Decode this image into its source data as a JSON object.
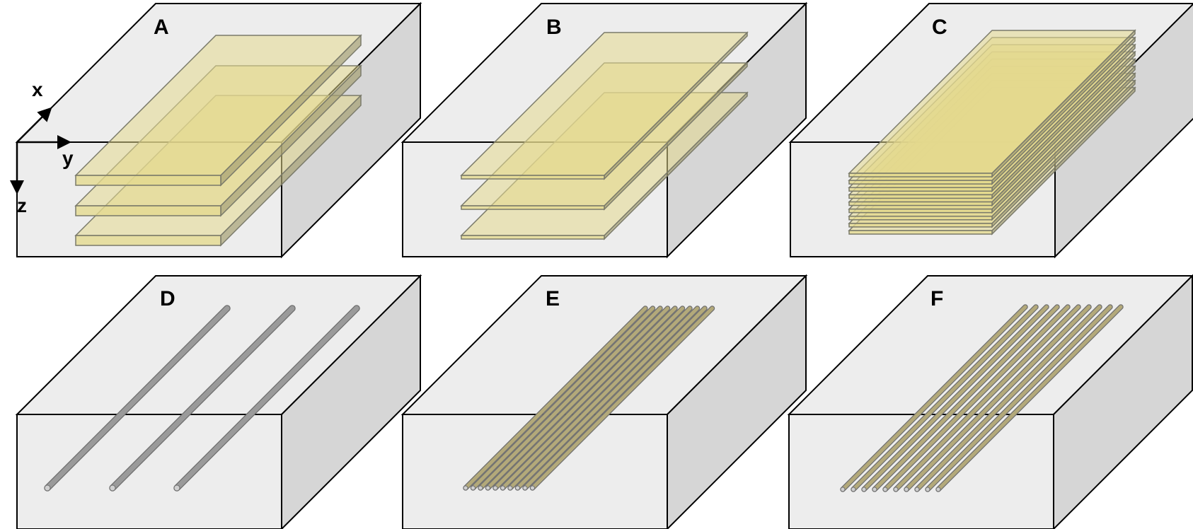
{
  "colors": {
    "box_top": "#ededed",
    "box_front": "#ededed",
    "box_side": "#d6d6d6",
    "box_stroke": "#000000",
    "sheet_fill": "#e3d98e",
    "sheet_stroke": "#7a7a6a",
    "rod_fill": "#9a9a9a",
    "rod_dark": "#6e6e6e",
    "fiber_fill": "#b3a97a",
    "fiber_stroke": "#6f6f6f"
  },
  "axes": {
    "x": "x",
    "y": "y",
    "z": "z"
  },
  "panels": [
    {
      "label": "A",
      "content": "sheets",
      "count": 3,
      "spacing": "wide",
      "thickness": "thick"
    },
    {
      "label": "B",
      "content": "sheets",
      "count": 3,
      "spacing": "wide",
      "thickness": "thin"
    },
    {
      "label": "C",
      "content": "sheets",
      "count": 9,
      "spacing": "dense",
      "thickness": "thin"
    },
    {
      "label": "D",
      "content": "rods",
      "count": 3,
      "spacing": "wide",
      "thickness": "thick"
    },
    {
      "label": "E",
      "content": "rods",
      "count": 10,
      "spacing": "dense",
      "thickness": "thin"
    },
    {
      "label": "F",
      "content": "rods",
      "count": 10,
      "spacing": "medium",
      "thickness": "thin"
    }
  ]
}
